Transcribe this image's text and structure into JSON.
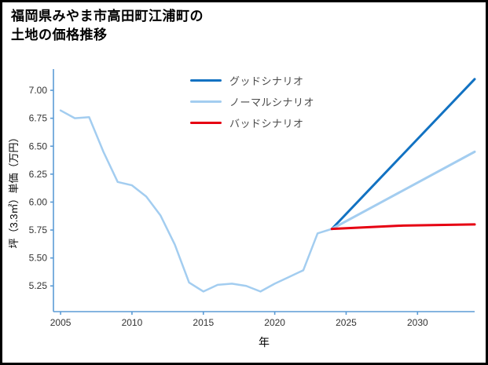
{
  "page": {
    "title_line1": "福岡県みやま市高田町江浦町の",
    "title_line2": "土地の価格推移"
  },
  "chart_data": {
    "type": "line",
    "title": "福岡県みやま市高田町江浦町の土地の価格推移",
    "xlabel": "年",
    "ylabel": "坪（3.3㎡）単価（万円）",
    "xlim": [
      2004.5,
      2034
    ],
    "ylim": [
      5.02,
      7.19
    ],
    "xticks": [
      2005,
      2010,
      2015,
      2020,
      2025,
      2030
    ],
    "yticks": [
      5.25,
      5.5,
      5.75,
      6.0,
      6.25,
      6.5,
      6.75,
      7.0
    ],
    "grid": false,
    "legend_position": "upper-center",
    "axis_color": "#5b9bd5",
    "tick_color": "#333333",
    "legend": [
      {
        "label": "グッドシナリオ",
        "color": "#1272c2"
      },
      {
        "label": "ノーマルシナリオ",
        "color": "#a3cdf0"
      },
      {
        "label": "バッドシナリオ",
        "color": "#e60012"
      }
    ],
    "series": [
      {
        "name": "historical",
        "color": "#a3cdf0",
        "width": 2.5,
        "x": [
          2005,
          2006,
          2007,
          2008,
          2009,
          2010,
          2011,
          2012,
          2013,
          2014,
          2015,
          2016,
          2017,
          2018,
          2019,
          2020,
          2021,
          2022,
          2023,
          2024
        ],
        "y": [
          6.82,
          6.75,
          6.76,
          6.45,
          6.18,
          6.15,
          6.05,
          5.88,
          5.62,
          5.28,
          5.2,
          5.26,
          5.27,
          5.25,
          5.2,
          5.27,
          5.33,
          5.39,
          5.72,
          5.76
        ]
      },
      {
        "name": "グッドシナリオ",
        "color": "#1272c2",
        "width": 3,
        "x": [
          2024,
          2034
        ],
        "y": [
          5.76,
          7.1
        ]
      },
      {
        "name": "ノーマルシナリオ",
        "color": "#a3cdf0",
        "width": 3,
        "x": [
          2024,
          2034
        ],
        "y": [
          5.76,
          6.45
        ]
      },
      {
        "name": "バッドシナリオ",
        "color": "#e60012",
        "width": 3,
        "x": [
          2024,
          2029,
          2034
        ],
        "y": [
          5.76,
          5.79,
          5.8
        ]
      }
    ]
  }
}
